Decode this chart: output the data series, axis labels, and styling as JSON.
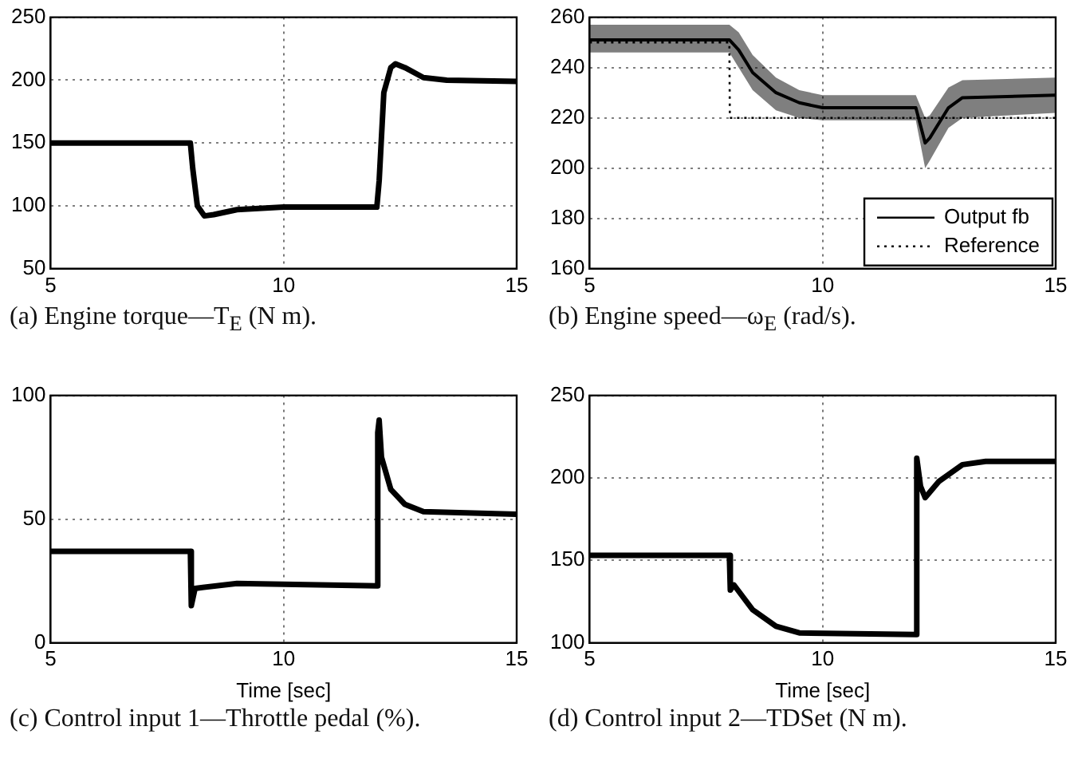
{
  "chart_data": [
    {
      "type": "line",
      "title": "(a) Engine torque—T$_{E}$ (N m).",
      "xlim": [
        5,
        15
      ],
      "xticks": [
        5,
        10,
        15
      ],
      "ylim": [
        50,
        250
      ],
      "yticks": [
        50,
        100,
        150,
        200,
        250
      ],
      "grid": true,
      "marker": "none",
      "line_style": "solid",
      "series": [
        {
          "color": "#000000",
          "x": [
            5,
            8,
            8.05,
            8.15,
            8.3,
            8.5,
            9,
            10,
            12,
            12.05,
            12.15,
            12.3,
            12.4,
            12.6,
            13,
            13.5,
            15
          ],
          "values": [
            150,
            150,
            130,
            100,
            92,
            93,
            97,
            99,
            99,
            120,
            190,
            210,
            213,
            210,
            202,
            200,
            199
          ]
        }
      ]
    },
    {
      "type": "line",
      "title": "(b) Engine speed—ω$_{E}$ (rad/s).",
      "xlim": [
        5,
        15
      ],
      "xticks": [
        5,
        10,
        15
      ],
      "ylim": [
        160,
        260
      ],
      "yticks": [
        160,
        180,
        200,
        220,
        240,
        260
      ],
      "grid": true,
      "marker": "none",
      "legend": "bottom right",
      "series": [
        {
          "name": "Output fb",
          "color": "#000000",
          "line_style": "solid",
          "x": [
            5,
            8,
            8.2,
            8.5,
            9,
            9.5,
            10,
            12,
            12.2,
            12.3,
            12.7,
            13,
            15
          ],
          "values": [
            251,
            251,
            247,
            238,
            230,
            226,
            224,
            224,
            210,
            212,
            224,
            228,
            229
          ],
          "lower": [
            246,
            246,
            240,
            231,
            223,
            220,
            219,
            219,
            200,
            203,
            216,
            220,
            222
          ],
          "upper": [
            257,
            257,
            254,
            245,
            236,
            231,
            229,
            229,
            220,
            221,
            232,
            235,
            236
          ]
        },
        {
          "name": "Reference",
          "color": "#000000",
          "line_style": "dotted",
          "x": [
            5,
            8,
            8.01,
            15
          ],
          "values": [
            250,
            250,
            220,
            220
          ]
        }
      ]
    },
    {
      "type": "line",
      "title": "(c) Control input 1—Throttle pedal (%).",
      "xlabel": "Time [sec]",
      "xlim": [
        5,
        15
      ],
      "xticks": [
        5,
        10,
        15
      ],
      "ylim": [
        0,
        100
      ],
      "yticks": [
        0,
        50,
        100
      ],
      "grid": true,
      "marker": "none",
      "line_style": "solid",
      "series": [
        {
          "color": "#000000",
          "x": [
            5,
            8,
            8.02,
            8.1,
            9,
            12,
            12.02,
            12.05,
            12.1,
            12.3,
            12.6,
            13,
            15
          ],
          "values": [
            37,
            37,
            15,
            22,
            24,
            23,
            85,
            90,
            75,
            62,
            56,
            53,
            52
          ]
        }
      ]
    },
    {
      "type": "line",
      "title": "(d) Control input 2—TDSet (N m).",
      "xlabel": "Time [sec]",
      "xlim": [
        5,
        15
      ],
      "xticks": [
        5,
        10,
        15
      ],
      "ylim": [
        100,
        250
      ],
      "yticks": [
        100,
        150,
        200,
        250
      ],
      "grid": true,
      "marker": "none",
      "line_style": "solid",
      "series": [
        {
          "color": "#000000",
          "x": [
            5,
            8,
            8.02,
            8.1,
            8.5,
            9,
            9.5,
            12,
            12.02,
            12.1,
            12.2,
            12.5,
            13,
            13.5,
            15
          ],
          "values": [
            153,
            153,
            132,
            135,
            120,
            110,
            106,
            105,
            212,
            195,
            188,
            198,
            208,
            210,
            210
          ]
        }
      ]
    }
  ]
}
